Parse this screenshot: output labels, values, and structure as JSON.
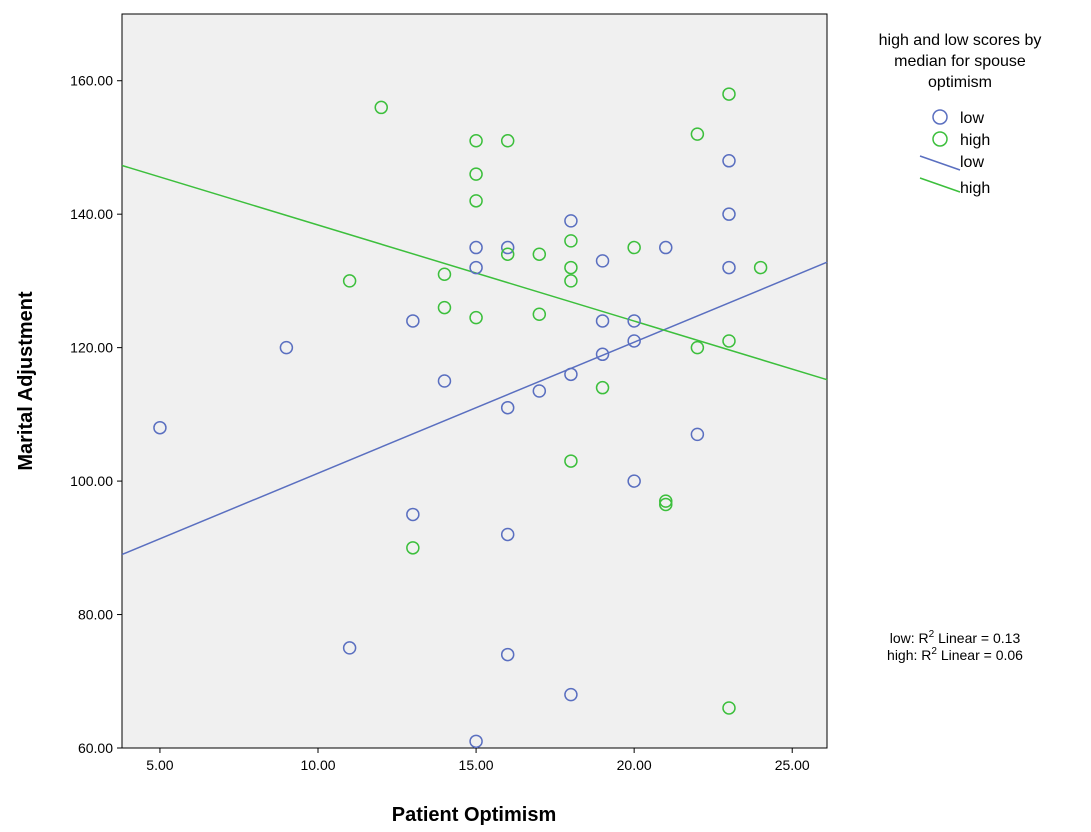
{
  "chart_data": {
    "type": "scatter",
    "xlabel": "Patient Optimism",
    "ylabel": "Marital Adjustment",
    "xlim": [
      3.8,
      26.1
    ],
    "ylim": [
      60,
      170
    ],
    "xticks": [
      "5.00",
      "10.00",
      "15.00",
      "20.00",
      "25.00"
    ],
    "xtick_values": [
      5,
      10,
      15,
      20,
      25
    ],
    "yticks": [
      "60.00",
      "80.00",
      "100.00",
      "120.00",
      "140.00",
      "160.00"
    ],
    "ytick_values": [
      60,
      80,
      100,
      120,
      140,
      160
    ],
    "grid": false,
    "background": "#f0f0f0",
    "legend": {
      "title_lines": [
        "high and low scores by",
        "median for spouse",
        "optimism"
      ],
      "placement": "right",
      "entries": [
        {
          "label": "low",
          "kind": "marker",
          "series": "low"
        },
        {
          "label": "high",
          "kind": "marker",
          "series": "high"
        },
        {
          "label": "low",
          "kind": "line",
          "series": "low"
        },
        {
          "label": "high",
          "kind": "line",
          "series": "high"
        }
      ]
    },
    "series": [
      {
        "name": "low",
        "color": "#5a6fc0",
        "points": [
          [
            5,
            108
          ],
          [
            9,
            120
          ],
          [
            11,
            75
          ],
          [
            13,
            124
          ],
          [
            13,
            95
          ],
          [
            14,
            115
          ],
          [
            15,
            135
          ],
          [
            15,
            132
          ],
          [
            15,
            61
          ],
          [
            16,
            135
          ],
          [
            16,
            111
          ],
          [
            16,
            92
          ],
          [
            16,
            74
          ],
          [
            17,
            113.5
          ],
          [
            18,
            139
          ],
          [
            18,
            116
          ],
          [
            18,
            68
          ],
          [
            19,
            133
          ],
          [
            19,
            124
          ],
          [
            19,
            119
          ],
          [
            20,
            124
          ],
          [
            20,
            121
          ],
          [
            20,
            100
          ],
          [
            21,
            135
          ],
          [
            22,
            107
          ],
          [
            23,
            148
          ],
          [
            23,
            140
          ],
          [
            23,
            132
          ]
        ],
        "fit_line": [
          [
            3.8,
            89
          ],
          [
            26.1,
            132.8
          ]
        ]
      },
      {
        "name": "high",
        "color": "#3cbf3c",
        "points": [
          [
            11,
            130
          ],
          [
            12,
            156
          ],
          [
            13,
            90
          ],
          [
            14,
            131
          ],
          [
            14,
            126
          ],
          [
            15,
            151
          ],
          [
            15,
            146
          ],
          [
            15,
            142
          ],
          [
            15,
            124.5
          ],
          [
            16,
            151
          ],
          [
            16,
            134
          ],
          [
            17,
            134
          ],
          [
            17,
            125
          ],
          [
            18,
            136
          ],
          [
            18,
            132
          ],
          [
            18,
            130
          ],
          [
            18,
            103
          ],
          [
            19,
            114
          ],
          [
            20,
            135
          ],
          [
            21,
            97
          ],
          [
            21,
            96.5
          ],
          [
            22,
            152
          ],
          [
            22,
            120
          ],
          [
            23,
            158
          ],
          [
            23,
            121
          ],
          [
            23,
            66
          ],
          [
            24,
            132
          ]
        ],
        "fit_line": [
          [
            3.8,
            147.3
          ],
          [
            26.1,
            115.2
          ]
        ]
      }
    ],
    "annotations": {
      "low_r2": {
        "prefix": "low: R",
        "sup": "2",
        "suffix": " Linear = 0.13"
      },
      "high_r2": {
        "prefix": "high: R",
        "sup": "2",
        "suffix": " Linear = 0.06"
      }
    }
  }
}
